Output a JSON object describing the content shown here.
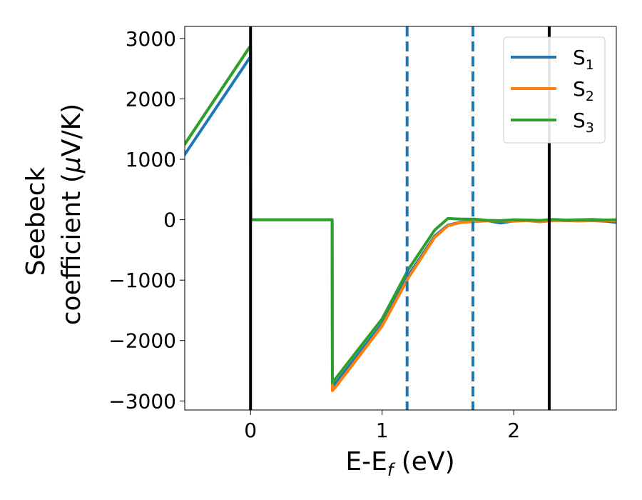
{
  "chart_data": {
    "type": "line",
    "xlabel_main": "E-E",
    "xlabel_sub": "f",
    "xlabel_unit": " (eV)",
    "ylabel_line1": "Seebeck",
    "ylabel_line2_pre": "coefficient  (",
    "ylabel_mu": "μ",
    "ylabel_line2_post": "V/K)",
    "xlim": [
      -0.5,
      2.78
    ],
    "ylim": [
      -3150,
      3200
    ],
    "xticks": [
      {
        "value": 0,
        "label": "0"
      },
      {
        "value": 1,
        "label": "1"
      },
      {
        "value": 2,
        "label": "2"
      }
    ],
    "yticks": [
      {
        "value": 3000,
        "label": "3000"
      },
      {
        "value": 2000,
        "label": "2000"
      },
      {
        "value": 1000,
        "label": "1000"
      },
      {
        "value": 0,
        "label": "0"
      },
      {
        "value": -1000,
        "label": "−1000"
      },
      {
        "value": -2000,
        "label": "−2000"
      },
      {
        "value": -3000,
        "label": "−3000"
      }
    ],
    "legend_position": "top-right",
    "series": [
      {
        "name": "S",
        "sub": "1",
        "color": "#1f77b4",
        "x": [
          -0.5,
          0.0,
          0.002,
          0.62,
          0.622,
          0.65,
          1.0,
          1.2,
          1.4,
          1.5,
          1.6,
          1.7,
          1.8,
          1.9,
          2.0,
          2.1,
          2.2,
          2.3,
          2.4,
          2.5,
          2.6,
          2.7,
          2.78
        ],
        "y": [
          1080,
          2700,
          0,
          0,
          -2760,
          -2700,
          -1720,
          -920,
          -270,
          -90,
          -40,
          -25,
          -15,
          -55,
          -20,
          -10,
          -30,
          -10,
          -15,
          -20,
          -15,
          -25,
          -45
        ]
      },
      {
        "name": "S",
        "sub": "2",
        "color": "#ff7f0e",
        "x": [
          -0.5,
          0.0,
          0.002,
          0.62,
          0.622,
          0.65,
          1.0,
          1.2,
          1.4,
          1.5,
          1.6,
          1.7,
          1.8,
          1.9,
          2.0,
          2.1,
          2.2,
          2.3,
          2.4,
          2.5,
          2.6,
          2.7,
          2.78
        ],
        "y": [
          1250,
          2880,
          0,
          0,
          -2830,
          -2760,
          -1760,
          -960,
          -290,
          -100,
          -45,
          -30,
          -20,
          -20,
          -25,
          -15,
          -35,
          -15,
          -10,
          -20,
          -10,
          -15,
          -20
        ]
      },
      {
        "name": "S",
        "sub": "3",
        "color": "#2ca02c",
        "x": [
          -0.5,
          0.0,
          0.002,
          0.62,
          0.622,
          0.65,
          1.0,
          1.2,
          1.4,
          1.5,
          1.6,
          1.7,
          1.8,
          1.9,
          2.0,
          2.1,
          2.2,
          2.3,
          2.4,
          2.5,
          2.6,
          2.7,
          2.78
        ],
        "y": [
          1250,
          2880,
          0,
          0,
          -2700,
          -2620,
          -1640,
          -820,
          -170,
          20,
          10,
          10,
          -10,
          -15,
          0,
          -5,
          -10,
          5,
          -5,
          0,
          5,
          -5,
          0
        ]
      }
    ],
    "vlines": [
      {
        "x": 0.0,
        "style": "solid",
        "color": "#000000"
      },
      {
        "x": 1.19,
        "style": "dashed",
        "color": "#1f77b4"
      },
      {
        "x": 1.69,
        "style": "dashed",
        "color": "#1f77b4"
      },
      {
        "x": 2.27,
        "style": "solid",
        "color": "#000000"
      }
    ]
  }
}
